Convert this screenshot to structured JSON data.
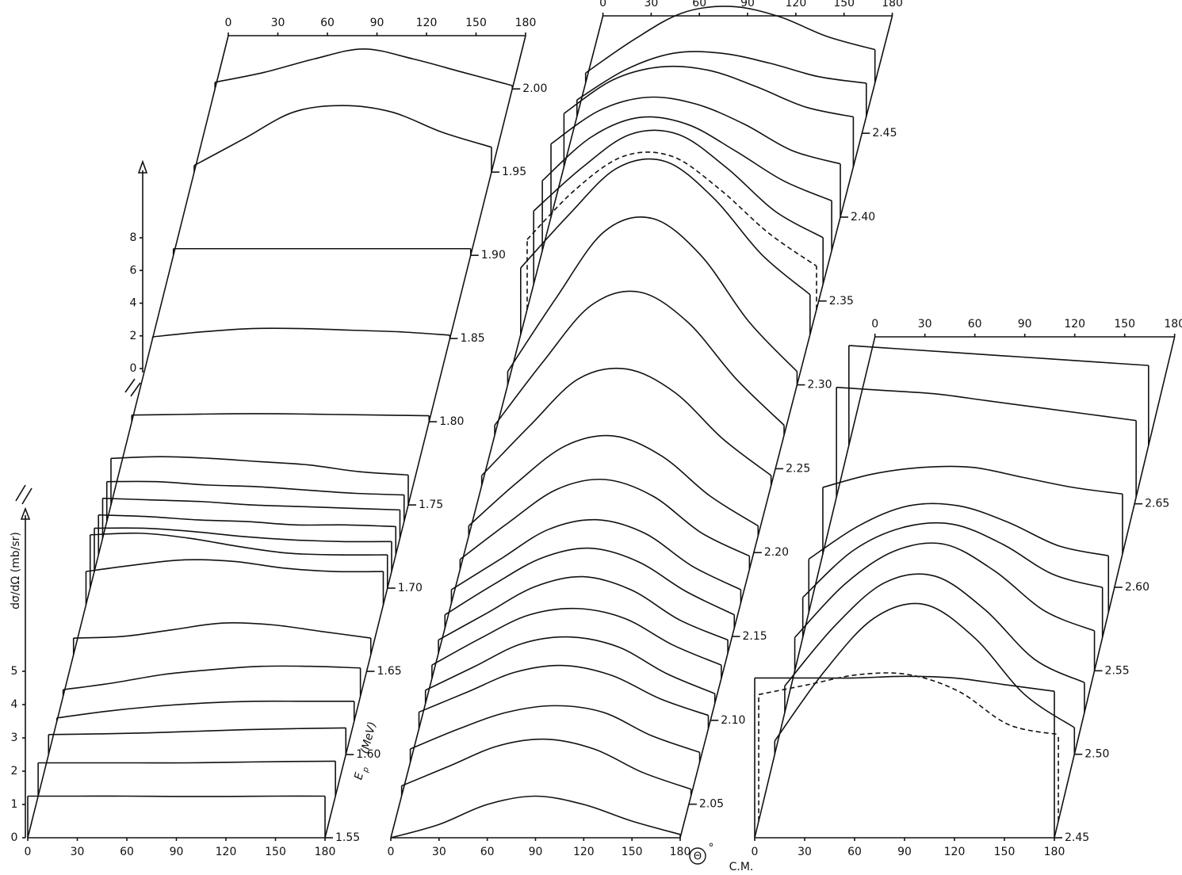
{
  "chart_data": {
    "type": "stacked_curves",
    "y_label": "dσ/dΩ (mb/sr)",
    "energy_label": "E",
    "energy_subscript": "p",
    "energy_unit": "(MeV)",
    "x_label": "Θ",
    "x_label_degree": "°",
    "x_label_unit": "C.M.",
    "ylim": [
      0,
      5
    ],
    "yticks": [
      0,
      1,
      2,
      3,
      4,
      5
    ],
    "y2lim": [
      0,
      8
    ],
    "y2ticks": [
      0,
      2,
      4,
      6,
      8
    ],
    "x": [
      0,
      30,
      60,
      90,
      120,
      150,
      180
    ],
    "panels": [
      {
        "xlim": [
          0,
          180
        ],
        "xticks": [
          0,
          30,
          60,
          90,
          120,
          150,
          180
        ],
        "elim": [
          1.55,
          2.032
        ],
        "energy_ticks": [
          1.55,
          {
            "value": 1.6,
            "label": "1.60"
          },
          1.65,
          {
            "value": 1.7,
            "label": "1.70"
          },
          1.75,
          {
            "value": 1.8,
            "label": "1.80"
          },
          1.85,
          {
            "value": 1.9,
            "label": "1.90"
          },
          1.95,
          {
            "value": 2.0,
            "label": "2.00"
          }
        ],
        "series": [
          {
            "energy": 1.55,
            "values": [
              1.25,
              1.25,
              1.25,
              1.24,
              1.24,
              1.25,
              1.25
            ]
          },
          {
            "energy": 1.575,
            "values": [
              1.0,
              1.0,
              1.0,
              1.0,
              1.02,
              1.04,
              1.05
            ]
          },
          {
            "energy": 1.6,
            "values": [
              0.6,
              0.62,
              0.65,
              0.7,
              0.75,
              0.78,
              0.8
            ]
          },
          {
            "energy": 1.62,
            "values": [
              0.1,
              0.3,
              0.45,
              0.55,
              0.6,
              0.6,
              0.6
            ]
          },
          {
            "energy": 1.635,
            "values": [
              0.2,
              0.4,
              0.65,
              0.8,
              0.9,
              0.9,
              0.85
            ]
          },
          {
            "energy": 1.66,
            "values": [
              0.5,
              0.55,
              0.75,
              0.95,
              0.9,
              0.7,
              0.5
            ]
          },
          {
            "energy": 1.69,
            "values": [
              1.0,
              1.2,
              1.35,
              1.3,
              1.1,
              1.0,
              1.0
            ]
          },
          {
            "energy": 1.7,
            "values": [
              1.6,
              1.65,
              1.5,
              1.25,
              1.05,
              1.0,
              1.0
            ]
          },
          {
            "energy": 1.71,
            "values": [
              1.3,
              1.3,
              1.2,
              1.05,
              0.95,
              0.9,
              0.9
            ]
          },
          {
            "energy": 1.72,
            "values": [
              1.2,
              1.15,
              1.05,
              1.0,
              0.9,
              0.9,
              0.85
            ]
          },
          {
            "energy": 1.73,
            "values": [
              1.2,
              1.15,
              1.1,
              1.0,
              0.95,
              0.9,
              0.85
            ]
          },
          {
            "energy": 1.74,
            "values": [
              1.2,
              1.2,
              1.1,
              1.05,
              0.95,
              0.85,
              0.8
            ]
          },
          {
            "energy": 1.75,
            "values": [
              1.4,
              1.45,
              1.4,
              1.3,
              1.2,
              1.0,
              0.9
            ]
          },
          {
            "energy": 1.8,
            "values": [
              0.2,
              0.22,
              0.24,
              0.24,
              0.22,
              0.2,
              0.18
            ]
          },
          {
            "energy": 1.85,
            "values": [
              0.05,
              0.2,
              0.3,
              0.3,
              0.25,
              0.2,
              0.1
            ]
          },
          {
            "energy": 1.9,
            "values": [
              0.2,
              0.2,
              0.2,
              0.2,
              0.2,
              0.2,
              0.2
            ]
          },
          {
            "energy": 1.95,
            "values": [
              0.2,
              1.0,
              1.8,
              2.0,
              1.8,
              1.2,
              0.75
            ]
          },
          {
            "energy": 2.0,
            "values": [
              0.2,
              0.5,
              0.9,
              1.2,
              0.9,
              0.5,
              0.1
            ]
          }
        ]
      },
      {
        "xlim": [
          0,
          180
        ],
        "xticks": [
          0,
          30,
          60,
          90,
          120,
          150,
          180
        ],
        "elim": [
          2.03,
          2.52
        ],
        "energy_ticks": [
          2.05,
          {
            "value": 2.1,
            "label": "2.10"
          },
          2.15,
          {
            "value": 2.2,
            "label": "2.20"
          },
          2.25,
          {
            "value": 2.3,
            "label": "2.30"
          },
          2.35,
          {
            "value": 2.4,
            "label": "2.40"
          },
          2.45
        ],
        "series": [
          {
            "energy": 2.03,
            "values": [
              0.0,
              0.4,
              1.0,
              1.25,
              1.0,
              0.5,
              0.1
            ]
          },
          {
            "energy": 2.055,
            "values": [
              0.3,
              0.9,
              1.5,
              1.7,
              1.4,
              0.7,
              0.2
            ]
          },
          {
            "energy": 2.075,
            "values": [
              0.4,
              1.0,
              1.5,
              1.7,
              1.5,
              0.8,
              0.3
            ]
          },
          {
            "energy": 2.095,
            "values": [
              0.5,
              1.1,
              1.7,
              1.9,
              1.6,
              0.9,
              0.4
            ]
          },
          {
            "energy": 2.11,
            "values": [
              0.4,
              1.1,
              1.8,
              2.0,
              1.7,
              0.9,
              0.3
            ]
          },
          {
            "energy": 2.125,
            "values": [
              0.4,
              1.2,
              1.9,
              2.1,
              1.8,
              1.0,
              0.4
            ]
          },
          {
            "energy": 2.14,
            "values": [
              0.4,
              1.2,
              2.0,
              2.3,
              1.9,
              1.0,
              0.4
            ]
          },
          {
            "energy": 2.155,
            "values": [
              0.4,
              1.3,
              2.1,
              2.4,
              2.0,
              1.1,
              0.4
            ]
          },
          {
            "energy": 2.17,
            "values": [
              0.4,
              1.3,
              2.2,
              2.5,
              2.1,
              1.1,
              0.4
            ]
          },
          {
            "energy": 2.19,
            "values": [
              0.3,
              1.4,
              2.4,
              2.7,
              2.2,
              1.1,
              0.4
            ]
          },
          {
            "energy": 2.21,
            "values": [
              0.3,
              1.6,
              2.7,
              3.0,
              2.4,
              1.2,
              0.3
            ]
          },
          {
            "energy": 2.24,
            "values": [
              0.3,
              1.8,
              3.2,
              3.5,
              2.8,
              1.4,
              0.3
            ]
          },
          {
            "energy": 2.27,
            "values": [
              0.3,
              2.2,
              3.9,
              4.3,
              3.4,
              1.7,
              0.3
            ]
          },
          {
            "energy": 2.3,
            "values": [
              0.4,
              2.6,
              4.6,
              5.0,
              3.9,
              1.9,
              0.4
            ]
          },
          {
            "energy": 2.33,
            "values": [
              2.0,
              3.6,
              5.0,
              5.2,
              4.1,
              2.4,
              1.2
            ]
          },
          {
            "energy": 2.345,
            "style": "dashed",
            "values": [
              2.1,
              3.6,
              4.6,
              4.6,
              3.6,
              2.3,
              1.3
            ]
          },
          {
            "energy": 2.36,
            "values": [
              2.2,
              3.5,
              4.5,
              4.5,
              3.5,
              2.2,
              1.4
            ]
          },
          {
            "energy": 2.38,
            "values": [
              2.1,
              3.4,
              4.0,
              3.8,
              3.0,
              2.1,
              1.5
            ]
          },
          {
            "energy": 2.4,
            "values": [
              2.2,
              3.2,
              3.6,
              3.4,
              2.8,
              2.0,
              1.6
            ]
          },
          {
            "energy": 2.43,
            "values": [
              1.6,
              2.6,
              3.0,
              2.9,
              2.4,
              1.8,
              1.5
            ]
          },
          {
            "energy": 2.46,
            "values": [
              0.5,
              1.4,
              1.9,
              1.9,
              1.6,
              1.2,
              1.0
            ]
          },
          {
            "energy": 2.48,
            "values": [
              0.3,
              1.3,
              2.1,
              2.3,
              2.0,
              1.4,
              1.0
            ]
          }
        ]
      },
      {
        "xlim": [
          0,
          180
        ],
        "xticks": [
          0,
          30,
          60,
          90,
          120,
          150,
          180
        ],
        "elim": [
          2.45,
          2.75
        ],
        "energy_ticks": [
          2.45,
          {
            "value": 2.5,
            "label": "2.50"
          },
          2.55,
          {
            "value": 2.6,
            "label": "2.60"
          },
          2.65
        ],
        "series": [
          {
            "energy": 2.45,
            "values": [
              4.8,
              4.8,
              4.8,
              4.85,
              4.8,
              4.6,
              4.4
            ]
          },
          {
            "energy": 2.46,
            "style": "dashed",
            "values": [
              3.8,
              4.1,
              4.4,
              4.4,
              3.9,
              2.9,
              2.6
            ]
          },
          {
            "energy": 2.5,
            "values": [
              0.4,
              2.5,
              4.1,
              4.5,
              3.5,
              1.8,
              0.8
            ]
          },
          {
            "energy": 2.525,
            "values": [
              0.8,
              2.6,
              3.9,
              4.1,
              3.1,
              1.6,
              0.9
            ]
          },
          {
            "energy": 2.55,
            "values": [
              1.0,
              2.6,
              3.6,
              3.8,
              3.0,
              1.8,
              1.2
            ]
          },
          {
            "energy": 2.57,
            "values": [
              1.2,
              2.6,
              3.3,
              3.4,
              2.8,
              1.9,
              1.5
            ]
          },
          {
            "energy": 2.585,
            "values": [
              1.6,
              2.6,
              3.2,
              3.2,
              2.7,
              2.0,
              1.7
            ]
          },
          {
            "energy": 2.62,
            "values": [
              2.0,
              2.4,
              2.6,
              2.6,
              2.3,
              2.0,
              1.8
            ]
          },
          {
            "energy": 2.654,
            "values": [
              3.3,
              3.2,
              3.1,
              2.9,
              2.7,
              2.5,
              2.3
            ]
          },
          {
            "energy": 2.685,
            "values": [
              3.0,
              2.9,
              2.8,
              2.7,
              2.6,
              2.5,
              2.4
            ]
          }
        ]
      }
    ]
  }
}
